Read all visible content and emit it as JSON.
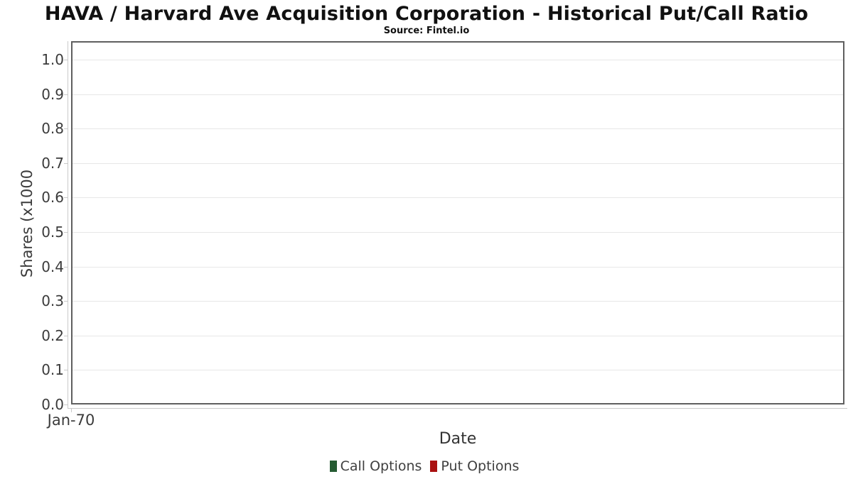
{
  "header": {
    "title": "HAVA / Harvard Ave Acquisition Corporation - Historical Put/Call Ratio",
    "subtitle": "Source: Fintel.io"
  },
  "chart_data": {
    "type": "line",
    "title": "HAVA / Harvard Ave Acquisition Corporation - Historical Put/Call Ratio",
    "subtitle": "Source: Fintel.io",
    "xlabel": "Date",
    "ylabel": "Shares (x1000",
    "x": [],
    "series": [
      {
        "name": "Call Options",
        "color": "#265c33",
        "values": []
      },
      {
        "name": "Put Options",
        "color": "#aa1111",
        "values": []
      }
    ],
    "xticks": [
      {
        "label": "Jan-70"
      }
    ],
    "yticks": [
      {
        "label": "0.0",
        "value": 0.0
      },
      {
        "label": "0.1",
        "value": 0.1
      },
      {
        "label": "0.2",
        "value": 0.2
      },
      {
        "label": "0.3",
        "value": 0.3
      },
      {
        "label": "0.4",
        "value": 0.4
      },
      {
        "label": "0.5",
        "value": 0.5
      },
      {
        "label": "0.6",
        "value": 0.6
      },
      {
        "label": "0.7",
        "value": 0.7
      },
      {
        "label": "0.8",
        "value": 0.8
      },
      {
        "label": "0.9",
        "value": 0.9
      },
      {
        "label": "1.0",
        "value": 1.0
      }
    ],
    "ylim": [
      0,
      1.053
    ],
    "grid": true,
    "legend_position": "bottom"
  },
  "legend": {
    "items": [
      {
        "label": "Call Options",
        "color": "#265c33"
      },
      {
        "label": "Put Options",
        "color": "#aa1111"
      }
    ]
  },
  "colors": {
    "plot_border": "#5f5f5f",
    "axis_line": "#c9c9c9",
    "gridline": "#e7e7e7",
    "tick_text": "#3b3b3b",
    "title_text": "#111111",
    "call_options": "#265c33",
    "put_options": "#aa1111"
  }
}
